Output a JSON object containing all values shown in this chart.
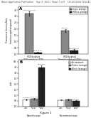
{
  "header_text": "Patent Application Publication    Sep. 8, 2011 / Sheet 1 of 9    US 2011/0217256 A1",
  "figure_label": "Figure 1",
  "panel_A": {
    "title": "A",
    "bar1_label": "mean: average",
    "bar2_label": "HGD vs. average",
    "bar1_values": [
      3.2,
      1.85
    ],
    "bar2_values": [
      0.12,
      0.32
    ],
    "bar1_color": "#888888",
    "bar2_color": "#222222",
    "bar1_error": [
      0.18,
      0.12
    ],
    "bar2_error": [
      0.04,
      0.06
    ],
    "ylabel": "Fluorescence Intensity Ratio\n(mean/average/background)",
    "annot_top0": "p<0.001, r=0.8",
    "annot_top1": "p<0.001",
    "annot_bar2_0": "28.4%+/-0.1%",
    "annot_bar2_1": "30.4%+/-29.0%",
    "ylim": [
      0,
      3.8
    ],
    "xtick0": "HGD dysplasia\nHGD epithelium (77%)",
    "xtick1": "HGD dysplasia\nNormal epithelium (77%)"
  },
  "panel_B": {
    "title": "B",
    "legend_labels": [
      "Pre-treatment",
      "Protein (average)",
      "Whole (average)"
    ],
    "legend_colors": [
      "#ffffff",
      "#888888",
      "#222222"
    ],
    "group1_label": "Barrett's scope",
    "group2_label": "No treatment scope",
    "values1": [
      0.62,
      0.68,
      3.5
    ],
    "values2": [
      0.58,
      0.6,
      0.52
    ],
    "colors": [
      "#ffffff",
      "#888888",
      "#222222"
    ],
    "error1": [
      0.07,
      0.07,
      0.18
    ],
    "error2": [
      0.05,
      0.05,
      0.05
    ],
    "annot1_0": "p=0.1 s.r.a",
    "annot1_1": "p=0.1 s.r.a",
    "annot1_2": "p<0.0001",
    "annot2_2": "p=0.0094",
    "ylabel": "ratio",
    "ylim": [
      0,
      4.2
    ]
  },
  "bg_color": "#ffffff",
  "header_fontsize": 2.2,
  "figure_label_fontsize": 3.0
}
